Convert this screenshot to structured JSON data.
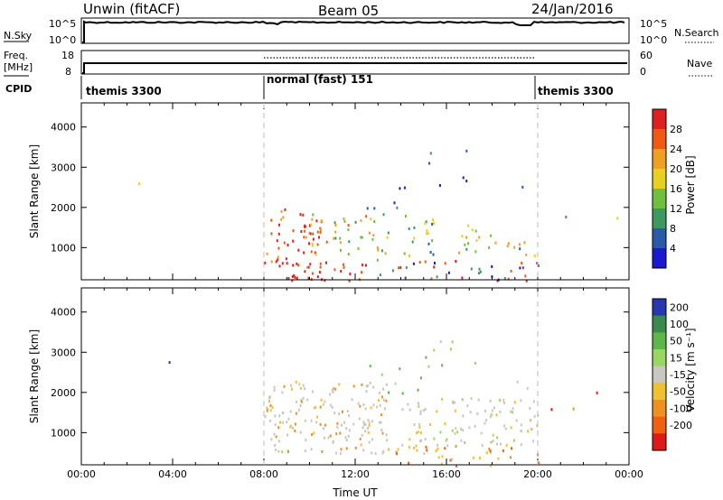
{
  "header": {
    "station": "Unwin (fitACF)",
    "beam": "Beam 05",
    "date": "24/Jan/2016"
  },
  "nsky_panel": {
    "left_label": "N.Sky",
    "right_label": "N.Search",
    "left_ticks": [
      "10^5",
      "10^0"
    ],
    "right_ticks": [
      "10^5",
      "10^0"
    ]
  },
  "freq_panel": {
    "left_label_line1": "Freq.",
    "left_label_line2": "[MHz]",
    "right_label": "Nave",
    "left_ticks": [
      "18",
      "8"
    ],
    "right_ticks": [
      "60",
      "0"
    ]
  },
  "cpid_panel": {
    "label": "CPID",
    "segments": [
      {
        "text": "themis 3300",
        "start_h": 0,
        "end_h": 8
      },
      {
        "text": "normal (fast) 151",
        "start_h": 8,
        "end_h": 20
      },
      {
        "text": "themis 3300",
        "start_h": 20,
        "end_h": 24
      }
    ]
  },
  "chart_data": [
    {
      "type": "heatmap",
      "name": "power",
      "ylabel": "Slant Range [km]",
      "yticks": [
        1000,
        2000,
        3000,
        4000
      ],
      "ylim": [
        200,
        4600
      ],
      "xlim": [
        0,
        24
      ],
      "colorbar_label": "Power [dB]",
      "colorbar_ticks": [
        "28",
        "24",
        "20",
        "16",
        "12",
        "8",
        "4"
      ],
      "colorbar_colors": [
        "#e02020",
        "#f05a10",
        "#f0a020",
        "#e8d020",
        "#70c040",
        "#3c9a60",
        "#2a5aa8",
        "#1a1ad0"
      ]
    },
    {
      "type": "heatmap",
      "name": "velocity",
      "ylabel": "Slant Range [km]",
      "xlabel": "Time UT",
      "xticks": [
        "00:00",
        "04:00",
        "08:00",
        "12:00",
        "16:00",
        "20:00",
        "00:00"
      ],
      "yticks": [
        1000,
        2000,
        3000,
        4000
      ],
      "ylim": [
        200,
        4600
      ],
      "xlim": [
        0,
        24
      ],
      "colorbar_label": "Velocity [m s⁻¹]",
      "colorbar_ticks": [
        "200",
        "100",
        "50",
        "15",
        "-15",
        "-50",
        "-100",
        "-200"
      ],
      "colorbar_colors": [
        "#2838b0",
        "#3a8a50",
        "#5ab848",
        "#98d860",
        "#c8c8c0",
        "#f0c030",
        "#f09020",
        "#f06010",
        "#e01818"
      ]
    }
  ],
  "axis_titles": {
    "slant_range": "Slant Range [km]",
    "time_ut": "Time UT"
  },
  "colors": {
    "dashed_marker": "#bbbbbb",
    "groundscatter_grey": "#c8c8c0"
  }
}
